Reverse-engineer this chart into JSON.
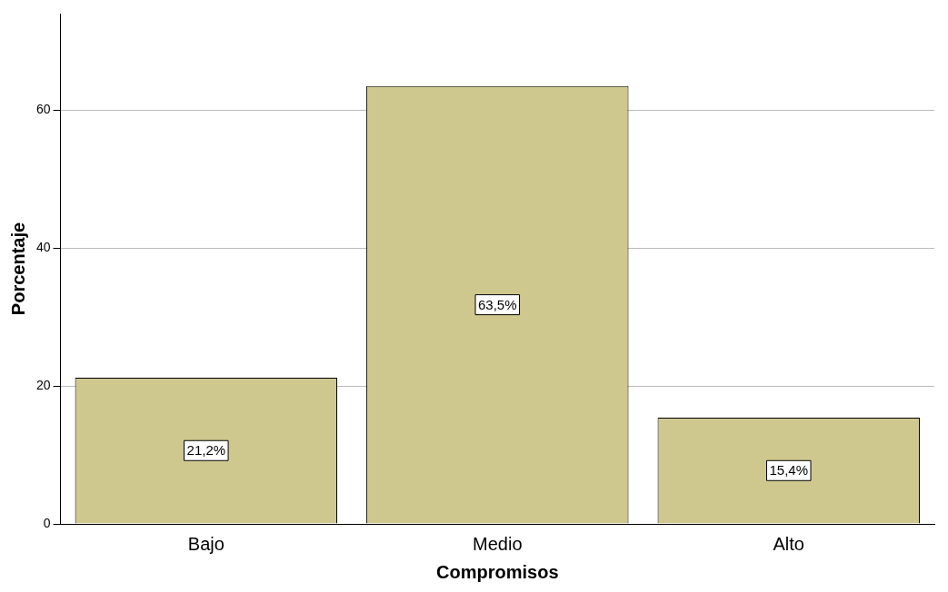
{
  "chart_data": {
    "type": "bar",
    "xlabel": "Compromisos",
    "ylabel": "Porcentaje",
    "categories": [
      "Bajo",
      "Medio",
      "Alto"
    ],
    "values": [
      21.2,
      63.5,
      15.4
    ],
    "value_labels": [
      "21,2%",
      "63,5%",
      "15,4%"
    ],
    "color": "#cfc88e",
    "ylim": [
      0,
      74
    ],
    "yticks": [
      0,
      20,
      40,
      60
    ],
    "grid": "y",
    "legend": false
  }
}
